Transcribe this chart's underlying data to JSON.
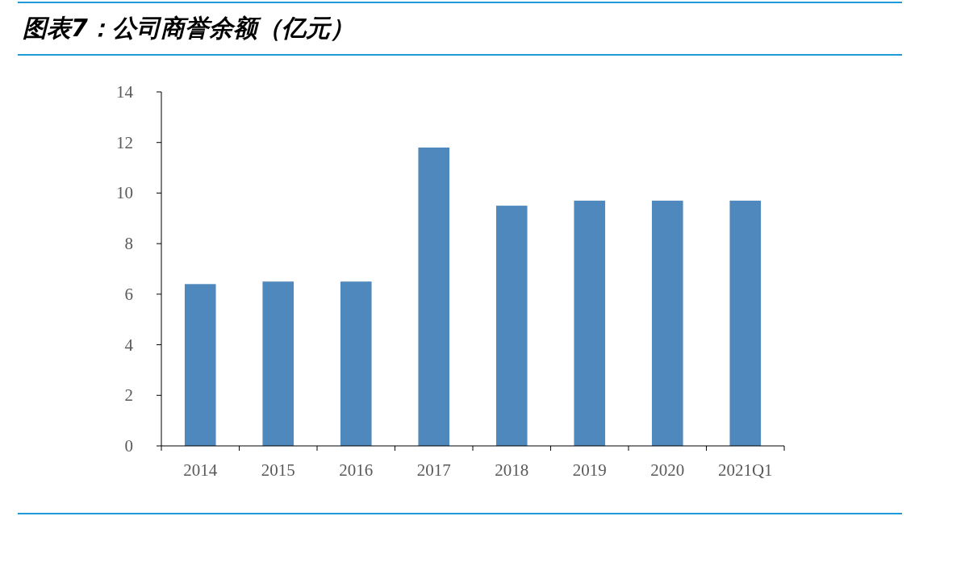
{
  "chart_data": {
    "type": "bar",
    "title": "图表7：公司商誉余额（亿元）",
    "categories": [
      "2014",
      "2015",
      "2016",
      "2017",
      "2018",
      "2019",
      "2020",
      "2021Q1"
    ],
    "values": [
      6.4,
      6.5,
      6.5,
      11.8,
      9.5,
      9.7,
      9.7,
      9.7
    ],
    "color": "#4f88bc",
    "ylim": [
      0,
      14
    ],
    "yticks": [
      0,
      2,
      4,
      6,
      8,
      10,
      12,
      14
    ]
  }
}
